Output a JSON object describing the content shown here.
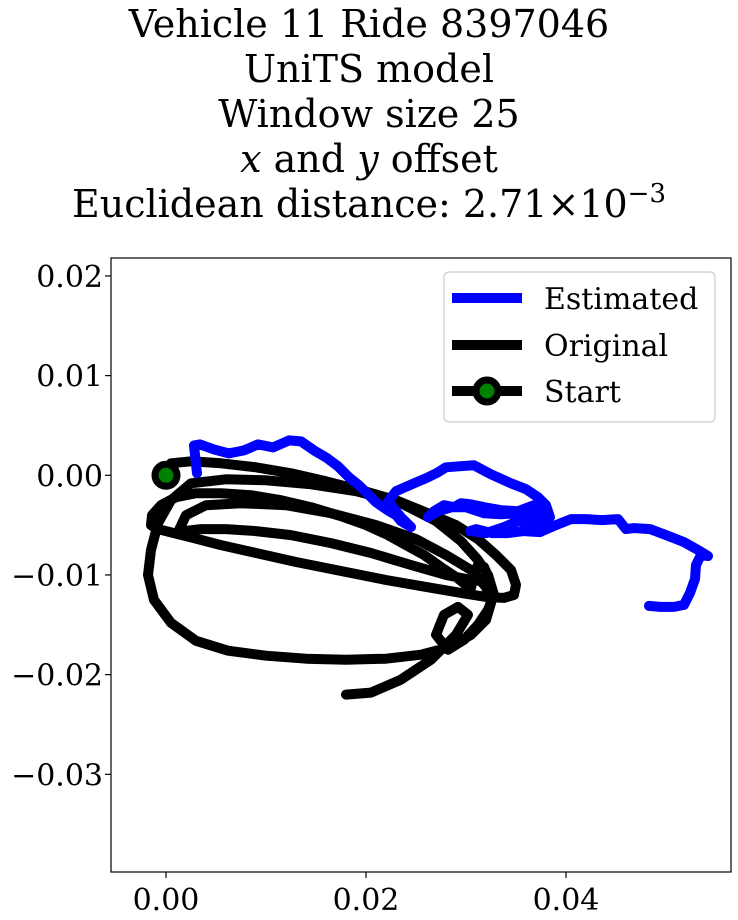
{
  "title": {
    "line1": "Vehicle 11 Ride 8397046",
    "line2": "UniTS model",
    "line3": "Window size 25",
    "line4_var_x": "x",
    "line4_mid": " and ",
    "line4_var_y": "y",
    "line4_tail": " offset",
    "line5_prefix": "Euclidean distance: 2.71",
    "line5_times": "×",
    "line5_base": "10",
    "line5_exp": "−3"
  },
  "chart_data": {
    "type": "line",
    "xlim": [
      -0.0055,
      0.0565
    ],
    "ylim": [
      -0.0398,
      0.0218
    ],
    "x_ticks": [
      0.0,
      0.02,
      0.04
    ],
    "x_tick_labels": [
      "0.00",
      "0.02",
      "0.04"
    ],
    "y_ticks": [
      0.02,
      0.01,
      0.0,
      -0.01,
      -0.02,
      -0.03
    ],
    "y_tick_labels": [
      "0.02",
      "0.01",
      "0.00",
      "−0.01",
      "−0.02",
      "−0.03"
    ],
    "grid": false,
    "legend_position": "upper-right",
    "colors": {
      "estimated": "#0000ff",
      "original": "#000000",
      "start_marker": "#008000"
    },
    "series": [
      {
        "name": "Estimated",
        "x": [
          0.0031,
          0.0028,
          0.0034,
          0.0048,
          0.0063,
          0.0078,
          0.0092,
          0.0107,
          0.0123,
          0.0135,
          0.0148,
          0.016,
          0.0172,
          0.0183,
          0.0193,
          0.0201,
          0.021,
          0.022,
          0.023,
          0.0235,
          0.024,
          0.0245,
          0.0235,
          0.0222,
          0.023,
          0.0248,
          0.0262,
          0.0272,
          0.028,
          0.0293,
          0.0308,
          0.0325,
          0.0345,
          0.036,
          0.0372,
          0.038,
          0.0384,
          0.038,
          0.0368,
          0.0352,
          0.0335,
          0.0318,
          0.0304,
          0.0295,
          0.0288,
          0.0278,
          0.0268,
          0.0262,
          0.0272,
          0.0286,
          0.03,
          0.0318,
          0.0335,
          0.0352,
          0.0368,
          0.0378,
          0.0382,
          0.0368,
          0.0352,
          0.0338,
          0.032,
          0.0304,
          0.031,
          0.0326,
          0.0342,
          0.0358,
          0.0374,
          0.039,
          0.0405,
          0.042,
          0.0436,
          0.0452,
          0.046,
          0.0468,
          0.0484,
          0.05,
          0.0518,
          0.0532,
          0.0542,
          0.0535,
          0.053,
          0.0529,
          0.0524,
          0.0518,
          0.0508,
          0.0494,
          0.0483
        ],
        "y": [
          0.0002,
          0.003,
          0.0031,
          0.0026,
          0.0022,
          0.0025,
          0.0031,
          0.0028,
          0.0035,
          0.0034,
          0.0025,
          0.0018,
          0.0009,
          -0.0002,
          -0.001,
          -0.0018,
          -0.0027,
          -0.0034,
          -0.004,
          -0.0046,
          -0.0049,
          -0.0052,
          -0.0042,
          -0.0026,
          -0.0016,
          -0.0008,
          -0.0002,
          0.0003,
          0.0008,
          0.0009,
          0.001,
          0.0001,
          -0.0008,
          -0.0014,
          -0.0022,
          -0.003,
          -0.0042,
          -0.0032,
          -0.003,
          -0.0036,
          -0.0035,
          -0.0032,
          -0.0029,
          -0.0028,
          -0.0032,
          -0.003,
          -0.0036,
          -0.0042,
          -0.0036,
          -0.0032,
          -0.0032,
          -0.0038,
          -0.0039,
          -0.0038,
          -0.0038,
          -0.0042,
          -0.0048,
          -0.0048,
          -0.0046,
          -0.0052,
          -0.0058,
          -0.0056,
          -0.0054,
          -0.0058,
          -0.0058,
          -0.0056,
          -0.0057,
          -0.005,
          -0.0044,
          -0.0044,
          -0.0045,
          -0.0044,
          -0.0054,
          -0.0053,
          -0.0054,
          -0.006,
          -0.0067,
          -0.0075,
          -0.0081,
          -0.008,
          -0.009,
          -0.0104,
          -0.0118,
          -0.013,
          -0.0132,
          -0.0132,
          -0.0131
        ]
      },
      {
        "name": "Original",
        "x": [
          0.0,
          0.0005,
          0.0025,
          0.0055,
          0.009,
          0.0125,
          0.016,
          0.0195,
          0.023,
          0.0262,
          0.029,
          0.0312,
          0.033,
          0.0345,
          0.035,
          0.0348,
          0.0338,
          0.032,
          0.0295,
          0.026,
          0.022,
          0.0175,
          0.013,
          0.009,
          0.0055,
          0.0028,
          0.0008,
          -0.0008,
          -0.0015,
          -0.0014,
          -0.0005,
          0.001,
          0.003,
          0.0055,
          0.0085,
          0.0115,
          0.0145,
          0.0175,
          0.02,
          0.0222,
          0.024,
          0.0258,
          0.0275,
          0.029,
          0.03,
          0.0305,
          0.0308,
          0.0312,
          0.0318,
          0.0322,
          0.031,
          0.028,
          0.0245,
          0.0205,
          0.0165,
          0.0125,
          0.009,
          0.006,
          0.0035,
          0.0018,
          0.0012,
          0.002,
          0.004,
          0.0075,
          0.012,
          0.0165,
          0.021,
          0.025,
          0.028,
          0.0305,
          0.032,
          0.0325,
          0.032,
          0.0305,
          0.0285,
          0.0255,
          0.022,
          0.018,
          0.014,
          0.01,
          0.0062,
          0.003,
          0.0005,
          -0.0012,
          -0.0018,
          -0.0015,
          -0.0008,
          0.0005,
          0.0025,
          0.006,
          0.01,
          0.0145,
          0.019,
          0.0235,
          0.027,
          0.0295,
          0.0312,
          0.0322,
          0.0328,
          0.0322,
          0.0312,
          0.0298,
          0.0282,
          0.027,
          0.0278,
          0.0292,
          0.0302,
          0.029,
          0.0265,
          0.0235,
          0.0205,
          0.018
        ],
        "y": [
          0.0,
          0.0012,
          0.0014,
          0.0012,
          0.0008,
          0.0002,
          -0.0006,
          -0.0015,
          -0.0025,
          -0.0038,
          -0.005,
          -0.0064,
          -0.008,
          -0.0095,
          -0.011,
          -0.012,
          -0.0123,
          -0.0122,
          -0.0118,
          -0.0112,
          -0.0105,
          -0.0096,
          -0.0087,
          -0.0078,
          -0.007,
          -0.0063,
          -0.0058,
          -0.0054,
          -0.005,
          -0.004,
          -0.003,
          -0.0022,
          -0.0018,
          -0.0018,
          -0.002,
          -0.0025,
          -0.0032,
          -0.0041,
          -0.005,
          -0.006,
          -0.007,
          -0.008,
          -0.0092,
          -0.0102,
          -0.011,
          -0.0113,
          -0.01,
          -0.009,
          -0.0092,
          -0.0101,
          -0.0106,
          -0.01,
          -0.009,
          -0.0078,
          -0.0068,
          -0.006,
          -0.0056,
          -0.0054,
          -0.0054,
          -0.0056,
          -0.0057,
          -0.004,
          -0.003,
          -0.0028,
          -0.003,
          -0.0038,
          -0.005,
          -0.0064,
          -0.008,
          -0.0095,
          -0.0112,
          -0.0128,
          -0.0145,
          -0.016,
          -0.0172,
          -0.018,
          -0.0184,
          -0.0185,
          -0.0184,
          -0.0181,
          -0.0176,
          -0.0166,
          -0.0148,
          -0.0125,
          -0.01,
          -0.0075,
          -0.0048,
          -0.0025,
          -0.0008,
          -0.0004,
          -0.0005,
          -0.0009,
          -0.0016,
          -0.0028,
          -0.0046,
          -0.0066,
          -0.0085,
          -0.01,
          -0.012,
          -0.0135,
          -0.015,
          -0.0165,
          -0.0175,
          -0.016,
          -0.014,
          -0.0132,
          -0.014,
          -0.016,
          -0.0185,
          -0.0205,
          -0.0218,
          -0.022
        ]
      }
    ],
    "start": {
      "name": "Start",
      "x": 0.0,
      "y": 0.0
    }
  }
}
